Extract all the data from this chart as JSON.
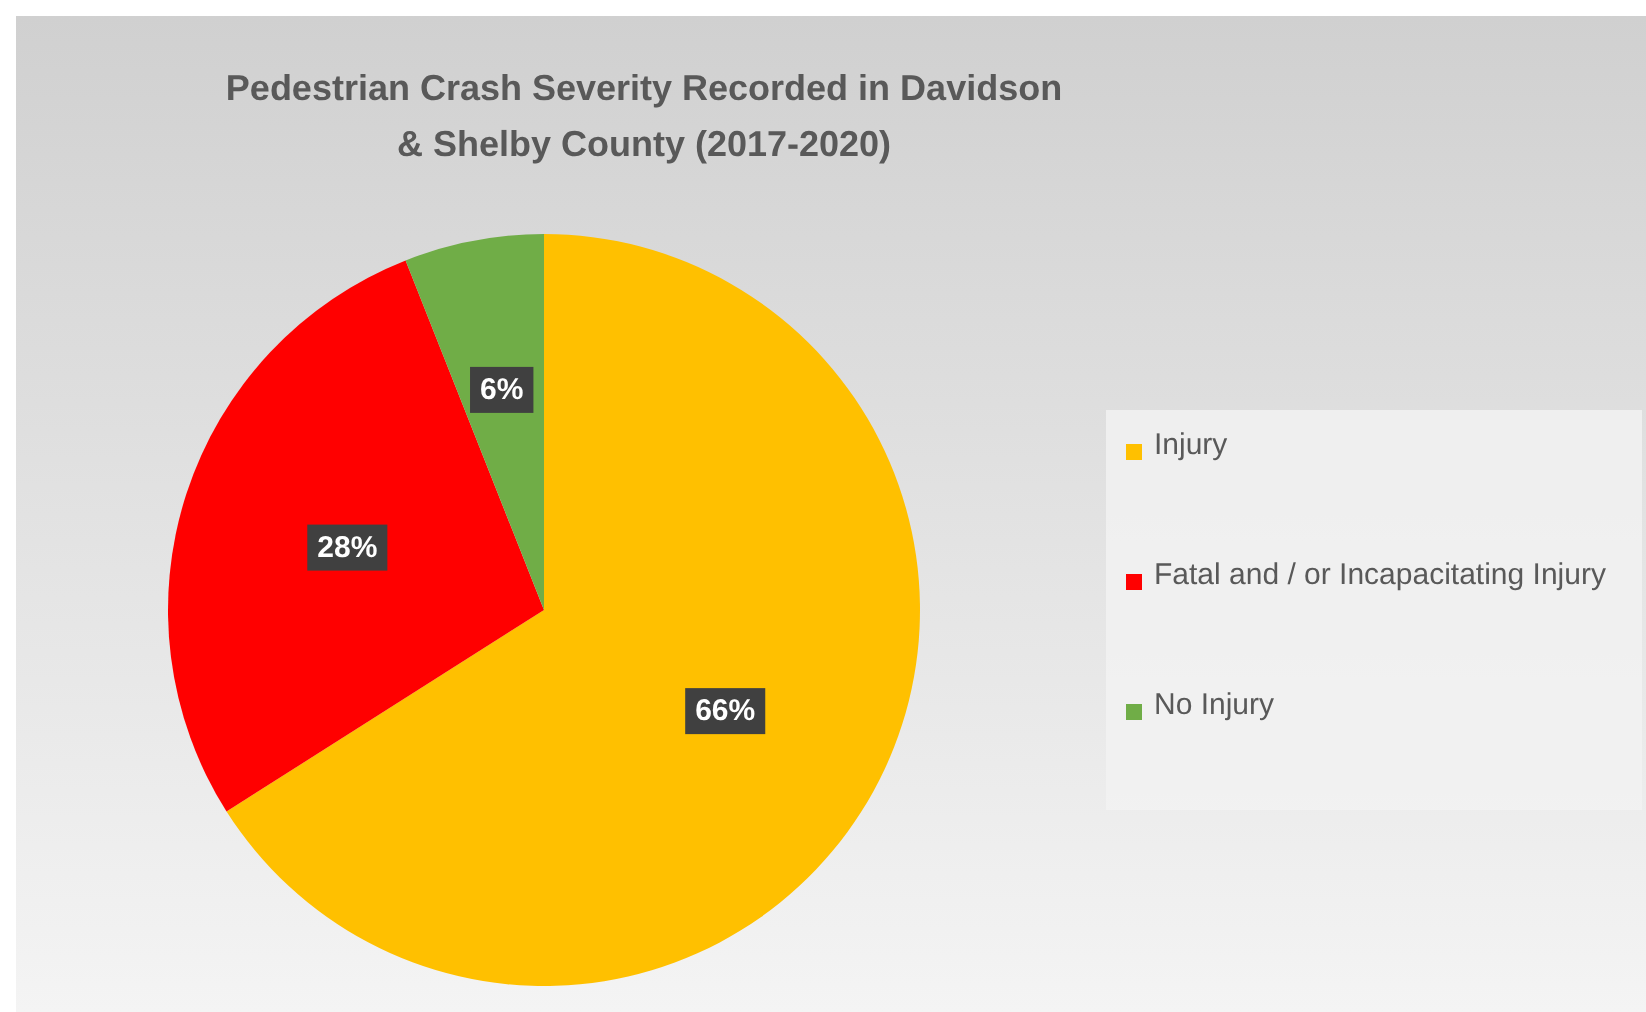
{
  "chart_data": {
    "type": "pie",
    "title": "Pedestrian Crash Severity Recorded in Davidson & Shelby County (2017-2020)",
    "categories": [
      "Injury",
      "Fatal and / or Incapacitating Injury",
      "No Injury"
    ],
    "values": [
      66,
      28,
      6
    ],
    "colors": [
      "#ffc000",
      "#ff0000",
      "#70ad47"
    ],
    "value_labels": [
      "66%",
      "28%",
      "6%"
    ],
    "legend": "right"
  }
}
